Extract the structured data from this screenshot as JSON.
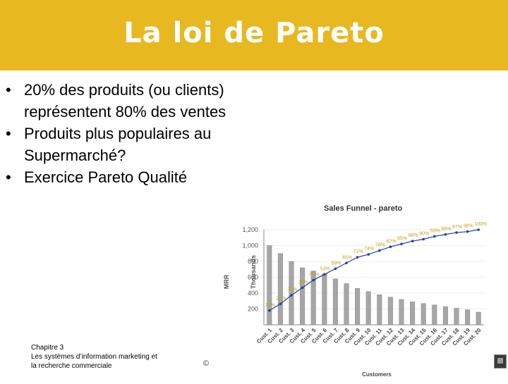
{
  "slide": {
    "title": "La loi de Pareto",
    "bullets": [
      "20% des produits (ou clients) représentent 80% des ventes",
      "Produits plus populaires au Supermarché?",
      "Exercice Pareto Qualité"
    ],
    "bullet_glyph": "•",
    "footer": {
      "chapter": "Chapitre 3",
      "line2": "Les systèmes d’information marketing et",
      "line3": "la recherche commerciale"
    },
    "copyright": "©",
    "colors": {
      "header": "#e8b820",
      "bar": "#a6a6a6",
      "line": "#1f3fa8",
      "label": "#c8a018"
    }
  },
  "chart_data": {
    "type": "bar",
    "title": "Sales Funnel - pareto",
    "xlabel": "Customers",
    "ylabel": "MRR",
    "yunit": "Thousands",
    "ylim": [
      0,
      1200
    ],
    "yticks": [
      "1,200",
      "1,000",
      "800",
      "600",
      "400",
      "200"
    ],
    "categories": [
      "Cust. 1",
      "Cust. 2",
      "Cust. 3",
      "Cust. 4",
      "Cust. 5",
      "Cust. 6",
      "Cust. 7",
      "Cust. 8",
      "Cust. 9",
      "Cust. 10",
      "Cust. 11",
      "Cust. 12",
      "Cust. 13",
      "Cust. 14",
      "Cust. 15",
      "Cust. 16",
      "Cust. 17",
      "Cust. 18",
      "Cust. 19",
      "Cust. 20"
    ],
    "series": [
      {
        "values": [
          1000,
          900,
          800,
          720,
          680,
          640,
          580,
          520,
          460,
          420,
          380,
          350,
          320,
          290,
          270,
          250,
          230,
          210,
          190,
          160
        ]
      },
      {
        "values": [
          15,
          22,
          31,
          39,
          47,
          53,
          59,
          65,
          71,
          74,
          78,
          82,
          85,
          88,
          90,
          93,
          95,
          97,
          98,
          100
        ],
        "labels": [
          "15%",
          "22%",
          "31%",
          "39%",
          "47%",
          "53%",
          "59%",
          "65%",
          "71%",
          "74%",
          "78%",
          "82%",
          "85%",
          "88%",
          "90%",
          "93%",
          "95%",
          "97%",
          "98%",
          "100%"
        ]
      }
    ]
  }
}
